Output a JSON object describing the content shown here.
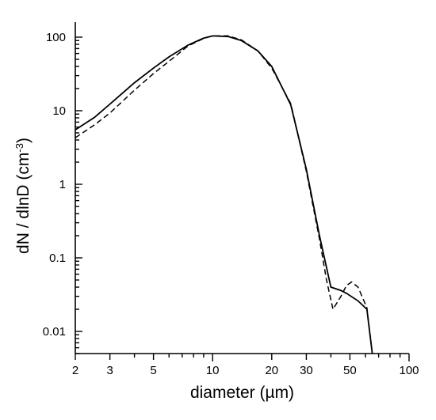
{
  "chart_data": {
    "type": "line",
    "xlabel": "diameter  (µm)",
    "ylabel": "dN / dlnD  (cm",
    "ylabel_sup": "-3",
    "ylabel_close": ")",
    "xscale": "log",
    "yscale": "log",
    "xlim": [
      2,
      100
    ],
    "ylim": [
      0.005,
      160
    ],
    "x_ticks": [
      2,
      3,
      5,
      10,
      20,
      30,
      50,
      100
    ],
    "x_tick_labels": [
      "2",
      "3",
      "5",
      "10",
      "20",
      "30",
      "50",
      "100"
    ],
    "y_ticks": [
      0.01,
      0.1,
      1,
      10,
      100
    ],
    "y_tick_labels": [
      "0.01",
      "0.1",
      "1",
      "10",
      "100"
    ],
    "grid": false,
    "series": [
      {
        "style": "solid",
        "x": [
          2,
          2.5,
          3,
          4,
          5,
          6,
          7.5,
          9,
          10,
          12,
          14,
          17,
          20,
          25,
          30,
          35,
          40,
          45,
          48,
          55,
          61,
          65
        ],
        "y": [
          5.5,
          8.1,
          12.3,
          24,
          38,
          54,
          78,
          97,
          104,
          102,
          90,
          65,
          40,
          12,
          1.6,
          0.2,
          0.04,
          0.036,
          0.033,
          0.026,
          0.02,
          0.005
        ]
      },
      {
        "style": "dashed",
        "x": [
          2,
          2.5,
          3,
          4,
          5,
          6,
          7.5,
          9,
          10,
          12,
          14,
          17,
          20,
          25,
          30,
          35,
          38,
          41,
          45,
          48,
          51,
          55,
          61,
          65
        ],
        "y": [
          4.3,
          6.4,
          9.3,
          19,
          32,
          47,
          76,
          96,
          104,
          104,
          92,
          65,
          38,
          12.5,
          1.5,
          0.18,
          0.05,
          0.02,
          0.03,
          0.042,
          0.047,
          0.04,
          0.021,
          0.005
        ]
      }
    ]
  }
}
